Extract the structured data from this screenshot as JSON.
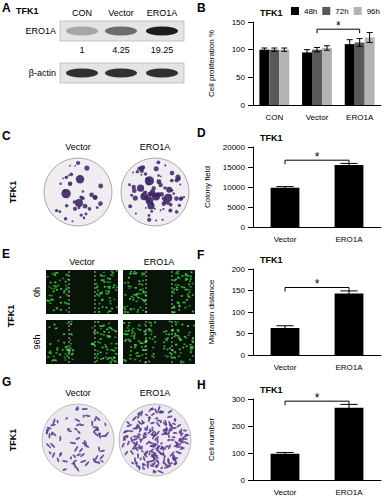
{
  "panels": {
    "A": {
      "letter": "A",
      "cell_line": "TFK1",
      "lanes": [
        "CON",
        "Vector",
        "ERO1A"
      ],
      "blots": [
        {
          "label": "ERO1A",
          "quantification": [
            1,
            4.25,
            19.25
          ]
        },
        {
          "label": "β-actin"
        }
      ]
    },
    "C": {
      "letter": "C",
      "cell_line": "TFK1",
      "columns": [
        "Vector",
        "ERO1A"
      ]
    },
    "E": {
      "letter": "E",
      "cell_line": "TFK1",
      "columns": [
        "Vector",
        "ERO1A"
      ],
      "rows": [
        "0h",
        "96h"
      ]
    },
    "G": {
      "letter": "G",
      "cell_line": "TFK1",
      "columns": [
        "Vector",
        "ERO1A"
      ]
    }
  },
  "chart_data": [
    {
      "panel": "B",
      "type": "bar",
      "title": "TFK1",
      "categories": [
        "CON",
        "Vector",
        "ERO1A"
      ],
      "series": [
        {
          "name": "48h",
          "color": "#000000",
          "values": [
            100,
            95,
            110
          ],
          "errors": [
            3,
            5,
            8
          ]
        },
        {
          "name": "72h",
          "color": "#595959",
          "values": [
            100,
            100,
            113
          ],
          "errors": [
            3,
            4,
            7
          ]
        },
        {
          "name": "96h",
          "color": "#b3b3b3",
          "values": [
            100,
            103,
            122
          ],
          "errors": [
            3,
            4,
            9
          ]
        }
      ],
      "ylabel": "Cell proliferation %",
      "ylim": [
        0,
        150
      ],
      "yticks": [
        0,
        50,
        100,
        150
      ],
      "legend": "top-right",
      "grid": false,
      "annotations": [
        {
          "text": "*",
          "between": [
            "Vector",
            "ERO1A"
          ]
        }
      ]
    },
    {
      "panel": "D",
      "type": "bar",
      "title": "TFK1",
      "categories": [
        "Vector",
        "ERO1A"
      ],
      "values": [
        9800,
        15500
      ],
      "errors": [
        300,
        400
      ],
      "color": "#000000",
      "ylabel": "Colony field",
      "ylim": [
        0,
        20000
      ],
      "yticks": [
        0,
        5000,
        10000,
        15000,
        20000
      ],
      "grid": false,
      "annotations": [
        {
          "text": "*",
          "between": [
            "Vector",
            "ERO1A"
          ]
        }
      ]
    },
    {
      "panel": "F",
      "type": "bar",
      "title": "TFK1",
      "categories": [
        "Vector",
        "ERO1A"
      ],
      "values": [
        63,
        143
      ],
      "errors": [
        5,
        6
      ],
      "color": "#000000",
      "ylabel": "Migration distance",
      "ylim": [
        0,
        200
      ],
      "yticks": [
        0,
        50,
        100,
        150,
        200
      ],
      "grid": false,
      "annotations": [
        {
          "text": "*",
          "between": [
            "Vector",
            "ERO1A"
          ]
        }
      ]
    },
    {
      "panel": "H",
      "type": "bar",
      "title": "TFK1",
      "categories": [
        "Vector",
        "ERO1A"
      ],
      "values": [
        97,
        268
      ],
      "errors": [
        5,
        12
      ],
      "color": "#000000",
      "ylabel": "Cell number",
      "ylim": [
        0,
        300
      ],
      "yticks": [
        0,
        100,
        200,
        300
      ],
      "grid": false,
      "annotations": [
        {
          "text": "*",
          "between": [
            "Vector",
            "ERO1A"
          ]
        }
      ]
    }
  ]
}
